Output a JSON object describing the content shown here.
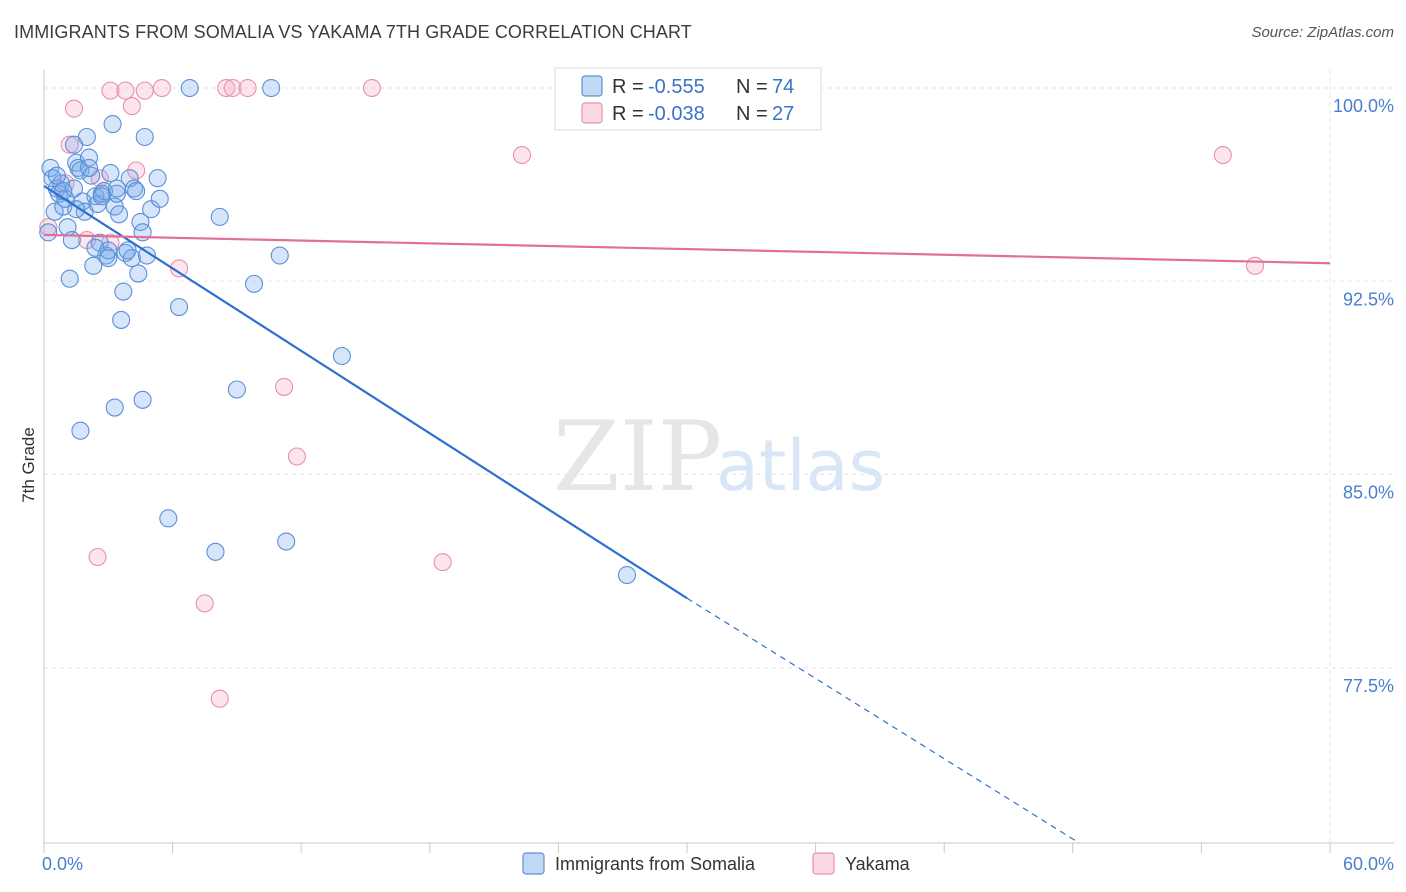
{
  "title": "IMMIGRANTS FROM SOMALIA VS YAKAMA 7TH GRADE CORRELATION CHART",
  "source": "Source: ZipAtlas.com",
  "watermark": {
    "zip": "ZIP",
    "atlas": "atlas"
  },
  "colors": {
    "somalia_fill": "rgba(120,170,235,0.30)",
    "somalia_stroke": "#5a90d8",
    "somalia_line": "#2f6fcf",
    "yakama_fill": "rgba(245,170,195,0.30)",
    "yakama_stroke": "#e98fae",
    "yakama_line": "#e07099",
    "grid": "#e4e4e4",
    "axis_label": "#4a7fd0"
  },
  "legend": {
    "rows": [
      {
        "r_label": "R = ",
        "r_value": "-0.555",
        "n_label": "N = ",
        "n_value": "74"
      },
      {
        "r_label": "R = ",
        "r_value": "-0.038",
        "n_label": "N = ",
        "n_value": "27"
      }
    ]
  },
  "chart_data": {
    "type": "scatter",
    "title": "IMMIGRANTS FROM SOMALIA VS YAKAMA 7TH GRADE CORRELATION CHART",
    "xlabel": "",
    "ylabel": "7th Grade",
    "xlim": [
      0,
      60
    ],
    "ylim": [
      70.7,
      100.7
    ],
    "x_tick_labels": [
      {
        "value": 0,
        "label": "0.0%"
      },
      {
        "value": 60,
        "label": "60.0%"
      }
    ],
    "x_minor_ticks": [
      0,
      6,
      12,
      18,
      24,
      30,
      36,
      42,
      48,
      54,
      60
    ],
    "y_ticks": [
      {
        "value": 100,
        "label": "100.0%"
      },
      {
        "value": 92.5,
        "label": "92.5%"
      },
      {
        "value": 85,
        "label": "85.0%"
      },
      {
        "value": 77.5,
        "label": "77.5%"
      }
    ],
    "grid": true,
    "legend_position": "bottom",
    "series": [
      {
        "name": "Immigrants from Somalia",
        "r": -0.555,
        "n": 74,
        "trend": {
          "x0": 0,
          "y0": 96.2,
          "x1": 30,
          "y1": 80.2,
          "dashed_to_x": 48.3,
          "dashed_to_y": 70.7
        },
        "points": [
          [
            0.2,
            94.4
          ],
          [
            0.3,
            96.9
          ],
          [
            0.4,
            96.5
          ],
          [
            0.5,
            95.2
          ],
          [
            0.6,
            96.1
          ],
          [
            0.7,
            95.9
          ],
          [
            0.8,
            96.3
          ],
          [
            0.9,
            95.4
          ],
          [
            1.0,
            95.7
          ],
          [
            1.1,
            94.6
          ],
          [
            1.2,
            92.6
          ],
          [
            1.3,
            94.1
          ],
          [
            1.4,
            96.1
          ],
          [
            1.5,
            97.1
          ],
          [
            1.6,
            96.9
          ],
          [
            1.7,
            96.8
          ],
          [
            1.8,
            95.6
          ],
          [
            1.9,
            95.2
          ],
          [
            2.0,
            98.1
          ],
          [
            2.1,
            97.3
          ],
          [
            2.2,
            96.6
          ],
          [
            2.3,
            93.1
          ],
          [
            2.4,
            95.8
          ],
          [
            2.5,
            95.5
          ],
          [
            2.6,
            94.0
          ],
          [
            2.7,
            95.9
          ],
          [
            2.8,
            96.0
          ],
          [
            2.9,
            93.5
          ],
          [
            3.0,
            93.4
          ],
          [
            3.1,
            96.7
          ],
          [
            3.2,
            98.6
          ],
          [
            3.3,
            95.4
          ],
          [
            3.4,
            95.9
          ],
          [
            3.5,
            95.1
          ],
          [
            3.6,
            91.0
          ],
          [
            3.7,
            92.1
          ],
          [
            3.8,
            93.6
          ],
          [
            3.9,
            93.7
          ],
          [
            4.0,
            96.5
          ],
          [
            4.1,
            93.4
          ],
          [
            4.2,
            96.1
          ],
          [
            4.3,
            96.0
          ],
          [
            4.4,
            92.8
          ],
          [
            4.5,
            94.8
          ],
          [
            4.6,
            94.4
          ],
          [
            4.7,
            98.1
          ],
          [
            4.8,
            93.5
          ],
          [
            1.4,
            97.8
          ],
          [
            1.7,
            86.7
          ],
          [
            3.3,
            87.6
          ],
          [
            4.6,
            87.9
          ],
          [
            5.0,
            95.3
          ],
          [
            5.3,
            96.5
          ],
          [
            5.4,
            95.7
          ],
          [
            5.8,
            83.3
          ],
          [
            6.3,
            91.5
          ],
          [
            6.8,
            100.0
          ],
          [
            8.2,
            95.0
          ],
          [
            8.0,
            82.0
          ],
          [
            9.0,
            88.3
          ],
          [
            9.8,
            92.4
          ],
          [
            11.0,
            93.5
          ],
          [
            11.3,
            82.4
          ],
          [
            13.9,
            89.6
          ],
          [
            10.6,
            100.0
          ],
          [
            27.2,
            81.1
          ],
          [
            2.1,
            96.9
          ],
          [
            0.9,
            96.0
          ],
          [
            2.7,
            95.8
          ],
          [
            3.4,
            96.1
          ],
          [
            1.5,
            95.3
          ],
          [
            0.6,
            96.6
          ],
          [
            2.4,
            93.8
          ],
          [
            3.0,
            93.7
          ]
        ]
      },
      {
        "name": "Yakama",
        "r": -0.038,
        "n": 27,
        "trend": {
          "x0": 0,
          "y0": 94.3,
          "x1": 60,
          "y1": 93.2
        },
        "points": [
          [
            0.2,
            94.6
          ],
          [
            1.2,
            97.8
          ],
          [
            1.4,
            99.2
          ],
          [
            2.0,
            94.1
          ],
          [
            2.5,
            81.8
          ],
          [
            3.1,
            94.0
          ],
          [
            3.1,
            99.9
          ],
          [
            3.8,
            99.9
          ],
          [
            4.1,
            99.3
          ],
          [
            4.7,
            99.9
          ],
          [
            4.3,
            96.8
          ],
          [
            5.5,
            100.0
          ],
          [
            6.3,
            93.0
          ],
          [
            7.5,
            80.0
          ],
          [
            8.5,
            100.0
          ],
          [
            8.8,
            100.0
          ],
          [
            8.2,
            76.3
          ],
          [
            9.5,
            100.0
          ],
          [
            11.2,
            88.4
          ],
          [
            11.8,
            85.7
          ],
          [
            15.3,
            100.0
          ],
          [
            18.6,
            81.6
          ],
          [
            22.3,
            97.4
          ],
          [
            55.0,
            97.4
          ],
          [
            56.5,
            93.1
          ],
          [
            1.0,
            96.3
          ],
          [
            2.6,
            96.5
          ]
        ]
      }
    ]
  }
}
